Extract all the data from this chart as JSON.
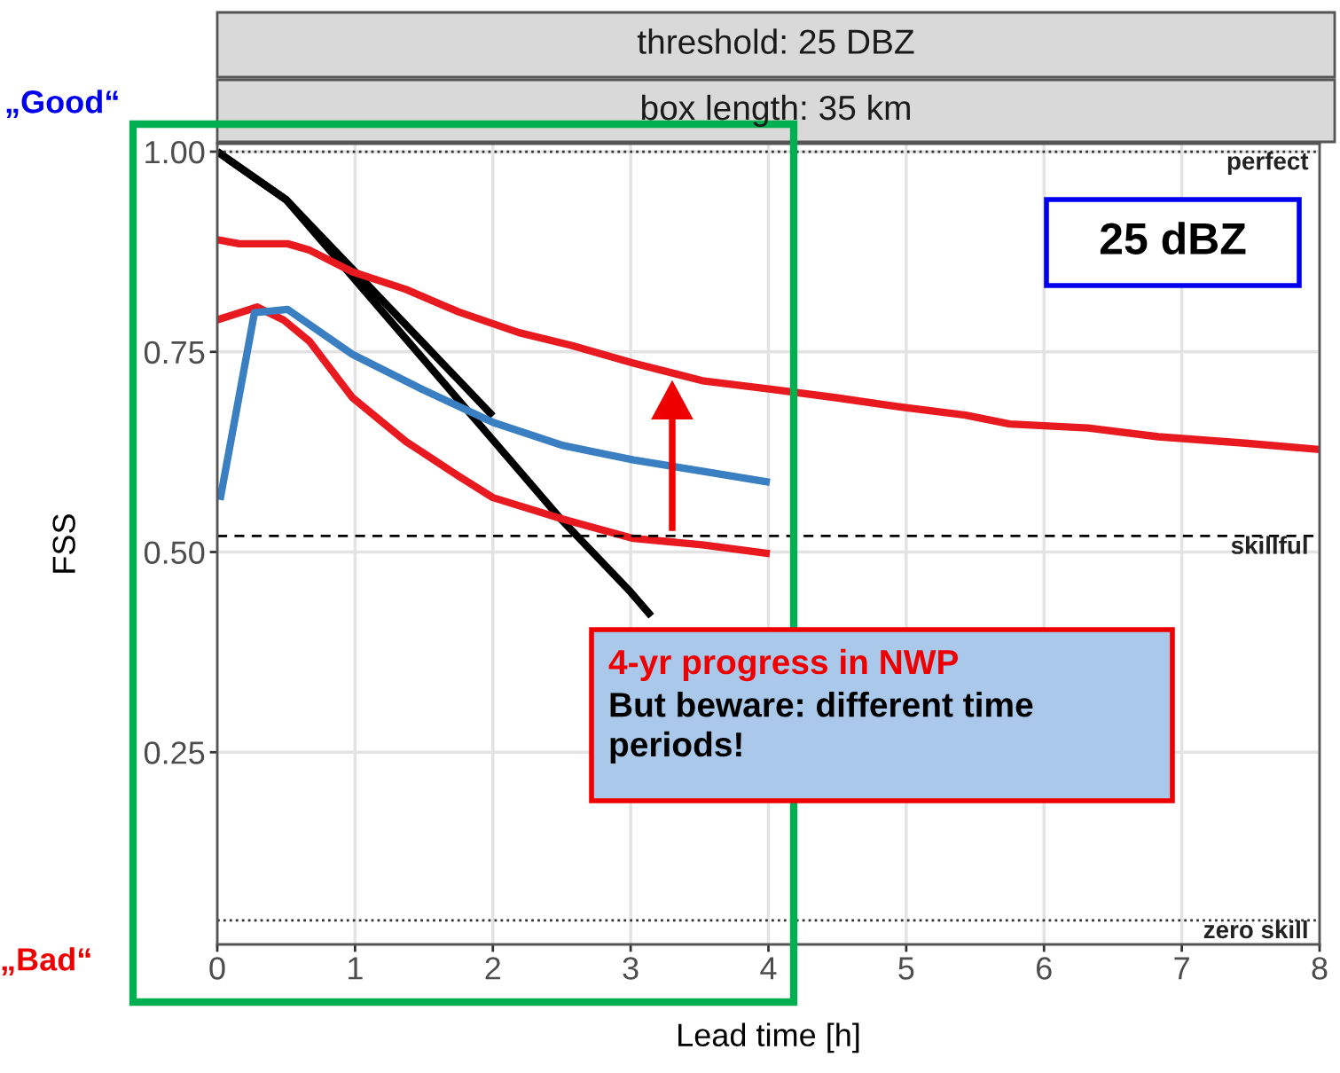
{
  "chart_data": {
    "type": "line",
    "title": "threshold: 25 DBZ",
    "subtitle": "box length: 35 km",
    "xlabel": "Lead time [h]",
    "ylabel": "FSS",
    "xlim": [
      0,
      8
    ],
    "ylim": [
      0.01,
      1.01
    ],
    "xticks": [
      0,
      1,
      2,
      3,
      4,
      5,
      6,
      7,
      8
    ],
    "yticks": [
      {
        "value": 0.25,
        "label": "0.25"
      },
      {
        "value": 0.5,
        "label": "0.50"
      },
      {
        "value": 0.75,
        "label": "0.75"
      },
      {
        "value": 1.0,
        "label": "1.00"
      }
    ],
    "grid": true,
    "legend": false,
    "line_style": "solid",
    "marker": "none",
    "series": [
      {
        "color": "#000000",
        "x": [
          0,
          0.5,
          1,
          1.5,
          2
        ],
        "values": [
          1.0,
          0.94,
          0.85,
          0.76,
          0.67
        ]
      },
      {
        "color": "#000000",
        "x": [
          0,
          0.5,
          1,
          1.5,
          2,
          2.5,
          3,
          3.15
        ],
        "values": [
          1.0,
          0.94,
          0.84,
          0.74,
          0.64,
          0.54,
          0.45,
          0.42
        ]
      },
      {
        "color": "#e8191f",
        "x": [
          0,
          0.16,
          0.51,
          0.67,
          0.98,
          1.37,
          1.75,
          2.19,
          2.57,
          3.02,
          3.52,
          4.03,
          4.48,
          4.92,
          5.43,
          5.75,
          6.32,
          6.83,
          7.46,
          8.0
        ],
        "values": [
          0.89,
          0.885,
          0.885,
          0.877,
          0.85,
          0.828,
          0.8,
          0.774,
          0.758,
          0.736,
          0.714,
          0.703,
          0.693,
          0.682,
          0.671,
          0.66,
          0.655,
          0.644,
          0.636,
          0.628
        ]
      },
      {
        "color": "#e8191f",
        "x": [
          0,
          0.29,
          0.48,
          0.67,
          0.98,
          1.37,
          1.75,
          2.0,
          2.51,
          3.02,
          3.52,
          4.01
        ],
        "values": [
          0.79,
          0.806,
          0.79,
          0.763,
          0.693,
          0.638,
          0.595,
          0.568,
          0.541,
          0.517,
          0.509,
          0.498
        ]
      },
      {
        "color": "#3a7fc1",
        "x": [
          0.02,
          0.27,
          0.51,
          0.98,
          1.49,
          2.0,
          2.51,
          3.02,
          3.52,
          4.01
        ],
        "values": [
          0.565,
          0.799,
          0.803,
          0.747,
          0.703,
          0.662,
          0.633,
          0.615,
          0.601,
          0.587
        ]
      }
    ],
    "ref_lines": [
      {
        "axis": "y",
        "value": 1.0,
        "label": "perfect",
        "color": "#333333",
        "line_style": "dotted"
      },
      {
        "axis": "y",
        "value": 0.52,
        "label": "skillful",
        "color": "#000000",
        "line_style": "dashed"
      },
      {
        "axis": "y",
        "value": 0.04,
        "label": "zero skill",
        "color": "#333333",
        "line_style": "dotted"
      }
    ],
    "annotations": [
      "„Good“",
      "„Bad“",
      "25 dBZ",
      "4-yr progress in NWP",
      "But beware: different time periods!"
    ]
  }
}
